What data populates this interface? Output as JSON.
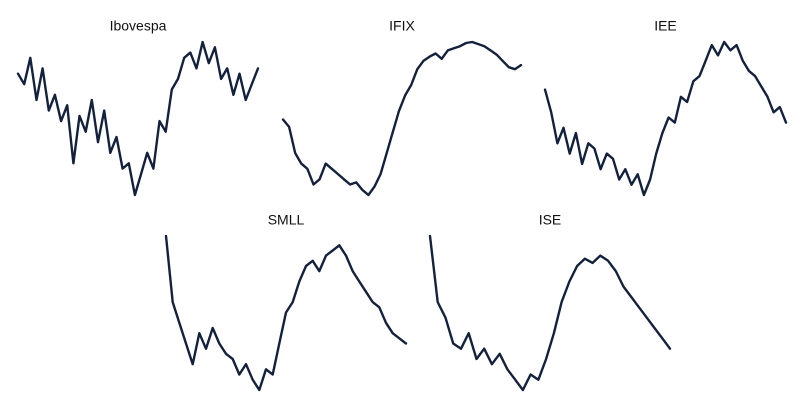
{
  "chart_data": [
    {
      "type": "line",
      "title": "Ibovespa",
      "color": "#14213d",
      "values": [
        125,
        115,
        140,
        100,
        130,
        90,
        105,
        80,
        95,
        40,
        85,
        70,
        100,
        60,
        90,
        50,
        65,
        35,
        40,
        10,
        30,
        50,
        35,
        80,
        70,
        110,
        120,
        140,
        145,
        130,
        155,
        135,
        150,
        120,
        130,
        105,
        125,
        100,
        115,
        130
      ]
    },
    {
      "type": "line",
      "title": "IFIX",
      "color": "#14213d",
      "values": [
        82,
        75,
        50,
        40,
        35,
        20,
        25,
        40,
        35,
        30,
        25,
        20,
        22,
        15,
        10,
        18,
        30,
        50,
        70,
        90,
        105,
        115,
        130,
        138,
        142,
        145,
        140,
        148,
        150,
        152,
        155,
        156,
        154,
        152,
        148,
        144,
        138,
        132,
        130,
        134
      ]
    },
    {
      "type": "line",
      "title": "IEE",
      "color": "#14213d",
      "values": [
        112,
        90,
        60,
        75,
        50,
        70,
        40,
        60,
        55,
        35,
        50,
        45,
        25,
        35,
        20,
        30,
        10,
        25,
        50,
        70,
        85,
        80,
        105,
        100,
        120,
        125,
        140,
        155,
        145,
        158,
        150,
        155,
        140,
        130,
        125,
        115,
        105,
        90,
        95,
        80
      ]
    },
    {
      "type": "line",
      "title": "SMLL",
      "color": "#14213d",
      "values": [
        164,
        100,
        80,
        60,
        40,
        70,
        55,
        75,
        60,
        50,
        45,
        30,
        40,
        25,
        15,
        35,
        30,
        60,
        90,
        100,
        120,
        135,
        140,
        130,
        145,
        150,
        155,
        145,
        130,
        120,
        110,
        100,
        95,
        80,
        70,
        65,
        60
      ]
    },
    {
      "type": "line",
      "title": "ISE",
      "color": "#14213d",
      "values": [
        164,
        100,
        85,
        60,
        55,
        70,
        45,
        55,
        40,
        50,
        35,
        25,
        15,
        30,
        25,
        45,
        70,
        100,
        120,
        135,
        142,
        138,
        145,
        140,
        130,
        115,
        105,
        95,
        85,
        75,
        65,
        55
      ]
    }
  ]
}
